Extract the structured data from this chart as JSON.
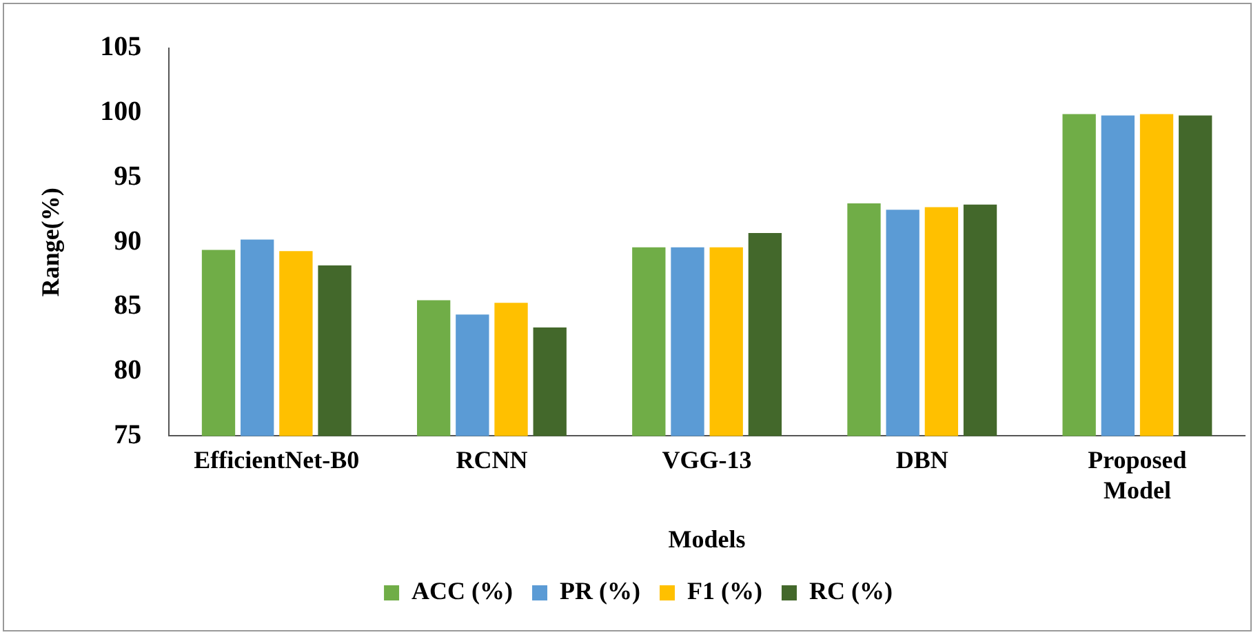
{
  "chart_data": {
    "type": "bar",
    "xlabel": "Models",
    "ylabel": "Range(%)",
    "categories": [
      "EfficientNet-B0",
      "RCNN",
      "VGG-13",
      "DBN",
      "Proposed Model"
    ],
    "series": [
      {
        "name": "ACC (%)",
        "color": "#70ad47",
        "values": [
          89.4,
          85.5,
          89.6,
          93.0,
          99.9
        ]
      },
      {
        "name": "PR (%)",
        "color": "#5b9bd5",
        "values": [
          90.2,
          84.4,
          89.6,
          92.5,
          99.8
        ]
      },
      {
        "name": "F1 (%)",
        "color": "#ffc000",
        "values": [
          89.3,
          85.3,
          89.6,
          92.7,
          99.9
        ]
      },
      {
        "name": "RC (%)",
        "color": "#43682b",
        "values": [
          88.2,
          83.4,
          90.7,
          92.9,
          99.8
        ]
      }
    ],
    "ylim": [
      75,
      105
    ],
    "yticks": [
      75,
      80,
      85,
      90,
      95,
      100,
      105
    ],
    "grid": false,
    "legend": "bottom"
  }
}
